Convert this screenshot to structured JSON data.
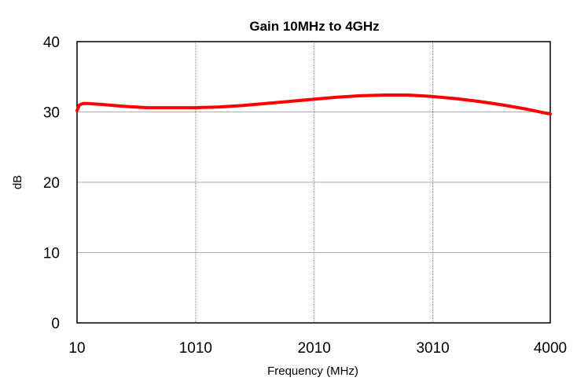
{
  "chart_data": {
    "type": "line",
    "title": "Gain 10MHz to 4GHz",
    "xlabel": "Frequency (MHz)",
    "ylabel": "dB",
    "xlim": [
      10,
      4000
    ],
    "ylim": [
      0,
      40
    ],
    "x_ticks": [
      10,
      1010,
      2010,
      3010,
      4000
    ],
    "y_ticks": [
      0,
      10,
      20,
      30,
      40
    ],
    "grid": true,
    "legend": "none",
    "series_color": "#ff0000",
    "series": [
      {
        "x": [
          10,
          30,
          60,
          100,
          200,
          400,
          600,
          800,
          1000,
          1200,
          1400,
          1600,
          1800,
          2000,
          2200,
          2400,
          2600,
          2800,
          3000,
          3200,
          3400,
          3600,
          3800,
          4000
        ],
        "y": [
          30.2,
          31.0,
          31.2,
          31.2,
          31.1,
          30.8,
          30.6,
          30.6,
          30.6,
          30.7,
          30.9,
          31.2,
          31.5,
          31.8,
          32.1,
          32.3,
          32.4,
          32.4,
          32.2,
          31.9,
          31.5,
          31.0,
          30.4,
          29.7
        ]
      }
    ]
  }
}
